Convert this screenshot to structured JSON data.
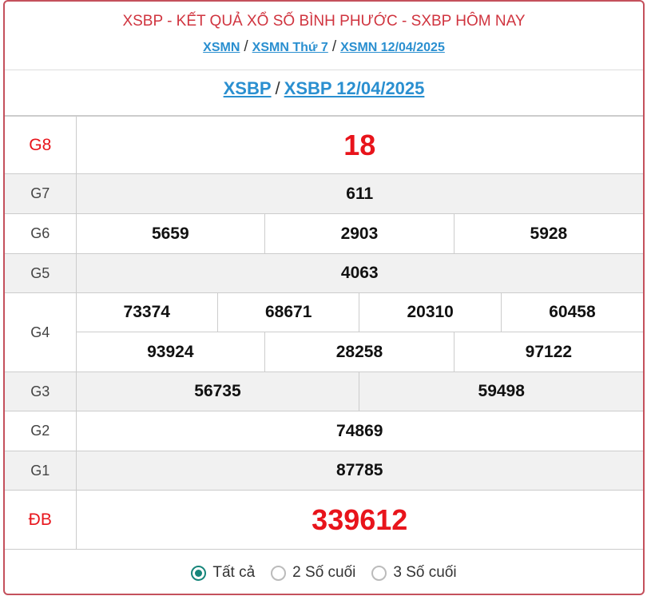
{
  "header": {
    "title": "XSBP - KẾT QUẢ XỔ SỐ BÌNH PHƯỚC - SXBP HÔM NAY",
    "crumbs": [
      "XSMN",
      "XSMN Thứ 7",
      "XSMN 12/04/2025"
    ],
    "separator": "/"
  },
  "subheader": {
    "links": [
      "XSBP",
      "XSBP 12/04/2025"
    ]
  },
  "prizes": {
    "g8": {
      "label": "G8",
      "values": [
        "18"
      ]
    },
    "g7": {
      "label": "G7",
      "values": [
        "611"
      ]
    },
    "g6": {
      "label": "G6",
      "values": [
        "5659",
        "2903",
        "5928"
      ]
    },
    "g5": {
      "label": "G5",
      "values": [
        "4063"
      ]
    },
    "g4": {
      "label": "G4",
      "values": [
        "73374",
        "68671",
        "20310",
        "60458",
        "93924",
        "28258",
        "97122"
      ]
    },
    "g3": {
      "label": "G3",
      "values": [
        "56735",
        "59498"
      ]
    },
    "g2": {
      "label": "G2",
      "values": [
        "74869"
      ]
    },
    "g1": {
      "label": "G1",
      "values": [
        "87785"
      ]
    },
    "db": {
      "label": "ĐB",
      "values": [
        "339612"
      ]
    }
  },
  "filter": {
    "options": [
      "Tất cả",
      "2 Số cuối",
      "3 Số cuối"
    ],
    "selected": "Tất cả"
  },
  "colors": {
    "title": "#d0343f",
    "link": "#2a8fd0",
    "highlight": "#e8141b",
    "radio": "#16857a",
    "border": "#c4505c"
  }
}
